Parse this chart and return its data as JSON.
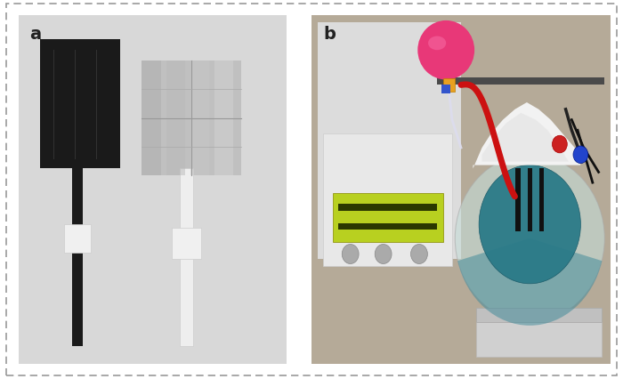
{
  "label_a": "a",
  "label_b": "b",
  "label_fontsize": 14,
  "label_fontweight": "bold",
  "fig_width": 7.0,
  "fig_height": 4.26,
  "dpi": 100,
  "background_color": "#ffffff"
}
